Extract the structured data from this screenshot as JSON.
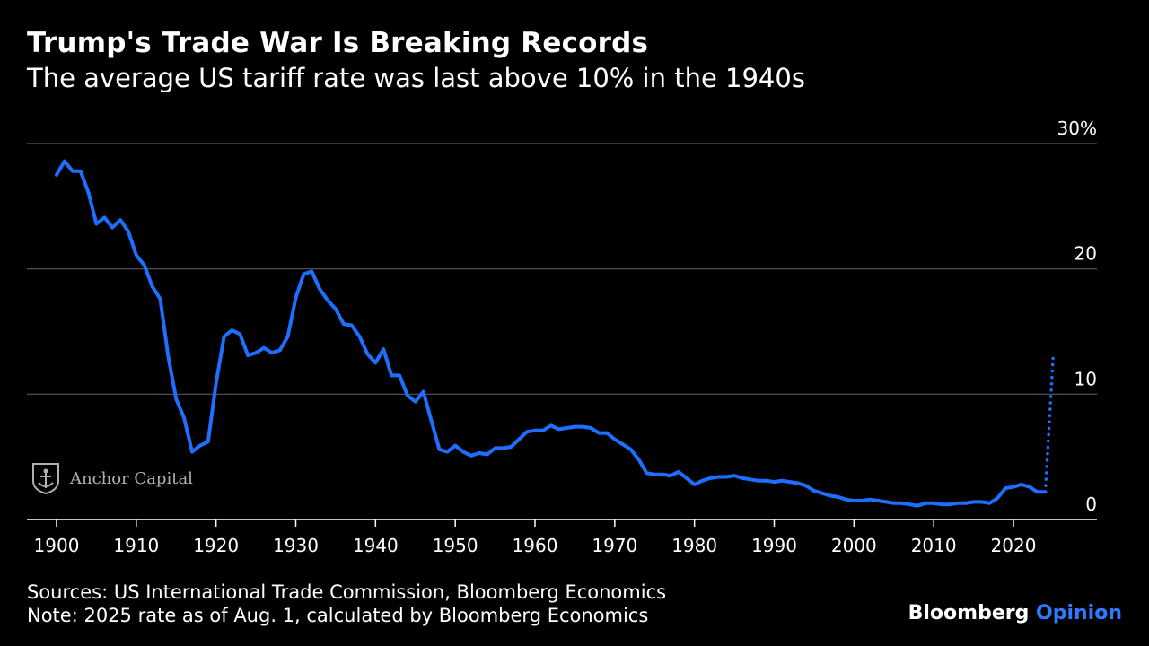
{
  "title": "Trump's Trade War Is Breaking Records",
  "subtitle": "The average US tariff rate was last above 10% in the 1940s",
  "footer": {
    "sources": "Sources: US International Trade Commission, Bloomberg Economics",
    "note": "Note: 2025 rate as of Aug. 1, calculated by Bloomberg Economics",
    "brand_1": "Bloomberg",
    "brand_2": "Opinion"
  },
  "watermark": {
    "text": "Anchor Capital",
    "icon": "anchor-logo-icon"
  },
  "colors": {
    "background": "#000000",
    "line": "#1e6fff",
    "grid": "#5a5a5a",
    "text": "#ffffff",
    "accent": "#2f7bff"
  },
  "chart_data": {
    "type": "line",
    "title": "Trump's Trade War Is Breaking Records",
    "subtitle": "The average US tariff rate was last above 10% in the 1940s",
    "xlabel": "",
    "ylabel": "",
    "xlim": [
      1898,
      2030
    ],
    "ylim": [
      0,
      30
    ],
    "x_ticks": [
      1900,
      1910,
      1920,
      1930,
      1940,
      1950,
      1960,
      1970,
      1980,
      1990,
      2000,
      2010,
      2020
    ],
    "y_ticks": [
      {
        "value": 0,
        "label": "0"
      },
      {
        "value": 10,
        "label": "10"
      },
      {
        "value": 20,
        "label": "20"
      },
      {
        "value": 30,
        "label": "30%"
      }
    ],
    "grid": "horizontal",
    "y_axis_side": "right",
    "series": [
      {
        "style": "solid",
        "x": [
          1900,
          1901,
          1902,
          1903,
          1904,
          1905,
          1906,
          1907,
          1908,
          1909,
          1910,
          1911,
          1912,
          1913,
          1914,
          1915,
          1916,
          1917,
          1918,
          1919,
          1920,
          1921,
          1922,
          1923,
          1924,
          1925,
          1926,
          1927,
          1928,
          1929,
          1930,
          1931,
          1932,
          1933,
          1934,
          1935,
          1936,
          1937,
          1938,
          1939,
          1940,
          1941,
          1942,
          1943,
          1944,
          1945,
          1946,
          1947,
          1948,
          1949,
          1950,
          1951,
          1952,
          1953,
          1954,
          1955,
          1956,
          1957,
          1958,
          1959,
          1960,
          1961,
          1962,
          1963,
          1964,
          1965,
          1966,
          1967,
          1968,
          1969,
          1970,
          1971,
          1972,
          1973,
          1974,
          1975,
          1976,
          1977,
          1978,
          1979,
          1980,
          1981,
          1982,
          1983,
          1984,
          1985,
          1986,
          1987,
          1988,
          1989,
          1990,
          1991,
          1992,
          1993,
          1994,
          1995,
          1996,
          1997,
          1998,
          1999,
          2000,
          2001,
          2002,
          2003,
          2004,
          2005,
          2006,
          2007,
          2008,
          2009,
          2010,
          2011,
          2012,
          2013,
          2014,
          2015,
          2016,
          2017,
          2018,
          2019,
          2020,
          2021,
          2022,
          2023,
          2024
        ],
        "y": [
          27.5,
          28.6,
          27.8,
          27.8,
          26.1,
          23.6,
          24.1,
          23.3,
          23.9,
          23.0,
          21.1,
          20.3,
          18.6,
          17.6,
          13.0,
          9.6,
          8.1,
          5.4,
          5.9,
          6.2,
          10.9,
          14.6,
          15.1,
          14.8,
          13.1,
          13.3,
          13.7,
          13.3,
          13.5,
          14.6,
          17.7,
          19.6,
          19.8,
          18.4,
          17.5,
          16.8,
          15.6,
          15.5,
          14.6,
          13.2,
          12.5,
          13.6,
          11.5,
          11.5,
          9.9,
          9.4,
          10.2,
          7.9,
          5.6,
          5.4,
          5.9,
          5.4,
          5.1,
          5.3,
          5.2,
          5.7,
          5.7,
          5.8,
          6.4,
          7.0,
          7.1,
          7.1,
          7.5,
          7.2,
          7.3,
          7.4,
          7.4,
          7.3,
          6.9,
          6.9,
          6.4,
          6.0,
          5.6,
          4.8,
          3.7,
          3.6,
          3.6,
          3.5,
          3.8,
          3.3,
          2.8,
          3.1,
          3.3,
          3.4,
          3.4,
          3.5,
          3.3,
          3.2,
          3.1,
          3.1,
          3.0,
          3.1,
          3.0,
          2.9,
          2.7,
          2.3,
          2.1,
          1.9,
          1.8,
          1.6,
          1.5,
          1.5,
          1.6,
          1.5,
          1.4,
          1.3,
          1.3,
          1.2,
          1.1,
          1.3,
          1.3,
          1.2,
          1.2,
          1.3,
          1.3,
          1.4,
          1.4,
          1.3,
          1.7,
          2.5,
          2.6,
          2.8,
          2.6,
          2.2,
          2.2
        ]
      },
      {
        "style": "dotted",
        "x": [
          2024,
          2025
        ],
        "y": [
          2.2,
          13.2
        ]
      }
    ]
  }
}
